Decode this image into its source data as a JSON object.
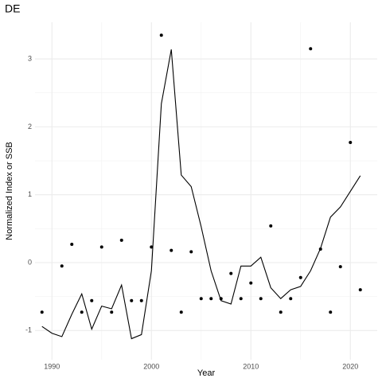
{
  "chart_data": {
    "type": "line",
    "title": "DE",
    "x_label": "Year",
    "y_label": "Normalized Index or SSB",
    "x": [
      1989,
      1990,
      1991,
      1992,
      1993,
      1994,
      1995,
      1996,
      1997,
      1998,
      1999,
      2000,
      2001,
      2002,
      2003,
      2004,
      2005,
      2006,
      2007,
      2008,
      2009,
      2010,
      2011,
      2012,
      2013,
      2014,
      2015,
      2016,
      2017,
      2018,
      2019,
      2020,
      2021
    ],
    "series": [
      {
        "type": "line",
        "color": "#000000",
        "values": [
          -0.94,
          -1.04,
          -1.09,
          -0.76,
          -0.46,
          -0.98,
          -0.64,
          -0.68,
          -0.33,
          -1.12,
          -1.06,
          -0.12,
          2.34,
          3.14,
          1.29,
          1.12,
          0.53,
          -0.12,
          -0.56,
          -0.61,
          -0.05,
          -0.05,
          0.08,
          -0.37,
          -0.53,
          -0.4,
          -0.35,
          -0.12,
          0.21,
          0.67,
          0.82,
          1.05,
          1.28
        ]
      },
      {
        "type": "scatter",
        "color": "#000000",
        "values": [
          -0.73,
          null,
          -0.05,
          0.27,
          -0.73,
          -0.56,
          0.23,
          -0.73,
          0.33,
          -0.56,
          -0.56,
          0.23,
          3.35,
          0.18,
          -0.73,
          0.16,
          -0.53,
          -0.53,
          -0.53,
          -0.16,
          -0.53,
          -0.3,
          -0.53,
          0.54,
          -0.73,
          -0.53,
          -0.22,
          3.15,
          0.2,
          -0.73,
          -0.06,
          1.77,
          -0.4
        ]
      }
    ],
    "xlim": [
      1988.3,
      2022.7
    ],
    "ylim": [
      -1.43,
      3.54
    ],
    "xticks": [
      1990,
      2000,
      2010,
      2020
    ],
    "yticks": [
      -1,
      0,
      1,
      2,
      3
    ],
    "xminor": [
      1995,
      2005,
      2015
    ],
    "yminor": [
      -0.5,
      0.5,
      1.5,
      2.5
    ],
    "grid": true
  }
}
